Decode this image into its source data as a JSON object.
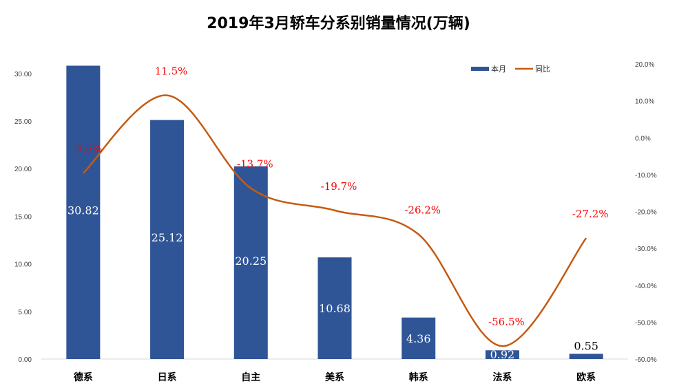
{
  "chart_data": {
    "type": "bar+line",
    "title": "2019年3月轿车分系别销量情况(万辆)",
    "categories": [
      "德系",
      "日系",
      "自主",
      "美系",
      "韩系",
      "法系",
      "欧系"
    ],
    "series": [
      {
        "name": "本月",
        "type": "bar",
        "axis": "left",
        "color": "#2f5597",
        "values": [
          30.82,
          25.12,
          20.25,
          10.68,
          4.36,
          0.92,
          0.55
        ]
      },
      {
        "name": "同比",
        "type": "line",
        "axis": "right",
        "color": "#c55a11",
        "values": [
          -9.6,
          11.5,
          -13.7,
          -19.7,
          -26.2,
          -56.5,
          -27.2
        ],
        "unit": "%"
      }
    ],
    "left_axis": {
      "range": [
        0,
        31
      ],
      "ticks": [
        "0.00",
        "5.00",
        "10.00",
        "15.00",
        "20.00",
        "25.00",
        "30.00"
      ]
    },
    "right_axis": {
      "range": [
        -60,
        20
      ],
      "ticks": [
        "-60.0%",
        "-50.0%",
        "-40.0%",
        "-30.0%",
        "-20.0%",
        "-10.0%",
        "0.0%",
        "10.0%",
        "20.0%"
      ]
    },
    "bar_labels": [
      "30.82",
      "25.12",
      "20.25",
      "10.68",
      "4.36",
      "0.92",
      "0.55"
    ],
    "line_labels": [
      "-9.6%",
      "11.5%",
      "-13.7%",
      "-19.7%",
      "-26.2%",
      "-56.5%",
      "-27.2%"
    ],
    "legend_position": "top-right",
    "grid": false,
    "label_color": "#ff0000"
  }
}
